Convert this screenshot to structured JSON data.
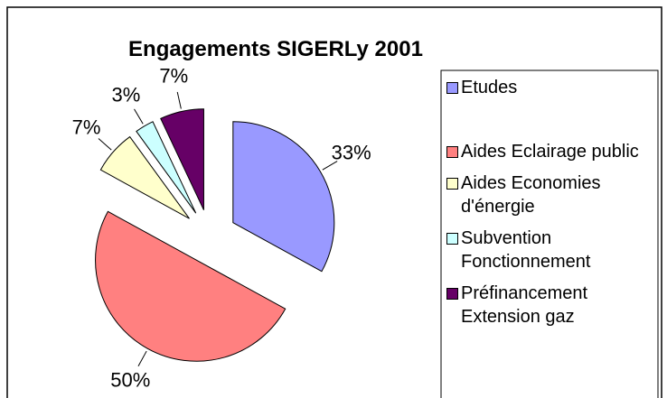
{
  "chart_data": {
    "type": "pie",
    "title": "Engagements SIGERLy 2001",
    "categories": [
      "Etudes",
      "Aides Eclairage public",
      "Aides Economies d'énergie",
      "Subvention Fonctionnement",
      "Préfinancement Extension gaz"
    ],
    "values": [
      33,
      50,
      7,
      3,
      7
    ],
    "value_labels": [
      "33%",
      "50%",
      "7%",
      "3%",
      "7%"
    ],
    "colors": [
      "#9999ff",
      "#ff8080",
      "#ffffcc",
      "#ccffff",
      "#660066"
    ],
    "legend": "right"
  }
}
